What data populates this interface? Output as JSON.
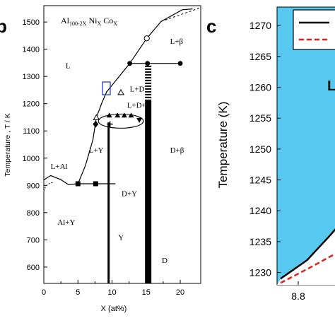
{
  "panels": {
    "b": {
      "letter": "b"
    },
    "c": {
      "letter": "c"
    }
  },
  "chart_data": [
    {
      "type": "line",
      "title": "Al100-2X NiX CoX",
      "title_parts": {
        "al": "Al",
        "al_sub": "100-2X",
        "ni": " Ni",
        "ni_sub": "X",
        "co": " Co",
        "co_sub": "X"
      },
      "xlabel": "X (at%)",
      "ylabel": "Temperature , T / K",
      "xlim": [
        0,
        23
      ],
      "ylim": [
        540,
        1560
      ],
      "xticks": [
        0,
        5,
        10,
        15,
        20
      ],
      "yticks": [
        600,
        700,
        800,
        900,
        1000,
        1100,
        1200,
        1300,
        1400,
        1500
      ],
      "grid": false,
      "phase_labels": [
        {
          "text": "L",
          "x": 3.2,
          "y": 1330
        },
        {
          "text": "L+β",
          "x": 18.5,
          "y": 1420
        },
        {
          "text": "L+D",
          "x": 12.6,
          "y": 1245
        },
        {
          "text": "L+D+Y",
          "x": 12.2,
          "y": 1185
        },
        {
          "text": "L+Al",
          "x": 1.0,
          "y": 960
        },
        {
          "text": "L+Y",
          "x": 6.6,
          "y": 1020
        },
        {
          "text": "D+β",
          "x": 18.5,
          "y": 1020
        },
        {
          "text": "D+Y",
          "x": 11.4,
          "y": 860
        },
        {
          "text": "Al+Y",
          "x": 2.0,
          "y": 755
        },
        {
          "text": "Y",
          "x": 10.9,
          "y": 700
        },
        {
          "text": "D",
          "x": 17.3,
          "y": 615
        }
      ],
      "series": [
        {
          "values": [
            [
              0,
              920
            ],
            [
              1,
              936
            ],
            [
              2.5,
              921
            ],
            [
              3.6,
              903
            ],
            [
              5,
              906
            ]
          ]
        },
        {
          "values": [
            [
              5,
              906
            ],
            [
              6.1,
              973
            ],
            [
              7.2,
              1068
            ],
            [
              7.7,
              1149
            ]
          ]
        },
        {
          "values": [
            [
              7.7,
              1149
            ],
            [
              8.5,
              1202
            ],
            [
              9.2,
              1243
            ],
            [
              12.6,
              1348
            ],
            [
              15.2,
              1348
            ],
            [
              20,
              1348
            ]
          ]
        },
        {
          "values": [
            [
              12.6,
              1348
            ],
            [
              15.1,
              1440
            ],
            [
              17.2,
              1502
            ],
            [
              20.3,
              1545
            ],
            [
              21.8,
              1548
            ]
          ]
        },
        {
          "values": [
            [
              5,
              906
            ],
            [
              10.5,
              906
            ]
          ]
        }
      ],
      "markers": {
        "filled_circles": [
          [
            12.6,
            1348
          ],
          [
            15.2,
            1348
          ],
          [
            20,
            1348
          ]
        ],
        "open_circles": [
          [
            15.1,
            1440
          ]
        ],
        "open_triangles": [
          [
            7.7,
            1149
          ],
          [
            11.3,
            1241
          ]
        ],
        "filled_squares": [
          [
            5,
            906
          ],
          [
            7.6,
            906
          ]
        ],
        "filled_diamonds": [
          [
            7.6,
            1125
          ]
        ],
        "filled_up_triangles": [
          [
            9.6,
            1157
          ],
          [
            10.8,
            1157
          ],
          [
            11.8,
            1157
          ],
          [
            12.8,
            1157
          ]
        ],
        "filled_down_triangles": [
          [
            14.0,
            1140
          ]
        ],
        "plus_marks": [
          [
            9.7,
            1125
          ]
        ]
      },
      "phase_lines": [
        {
          "x": 9.5,
          "ymin": 540,
          "ymax": 1131
        },
        {
          "x": 15.3,
          "ymin": 540,
          "ymax": 1210
        }
      ]
    },
    {
      "type": "area",
      "ylabel": "Temperature (K)",
      "xticks_labels": [
        "8.8"
      ],
      "yticks": [
        1230,
        1235,
        1240,
        1245,
        1250,
        1255,
        1260,
        1265,
        1270
      ],
      "ylim": [
        1228,
        1273
      ],
      "region_label": "L",
      "fill_color": "#57c9f1",
      "series": [
        {
          "color": "#000000",
          "style": "solid",
          "values": [
            [
              8.7,
              1229.0
            ],
            [
              8.85,
              1232.0
            ],
            [
              8.98,
              1236.0
            ],
            [
              9.04,
              1238.0
            ]
          ]
        },
        {
          "color": "#e02020",
          "style": "dashed",
          "values": [
            [
              8.7,
              1228.3
            ],
            [
              8.88,
              1231.0
            ],
            [
              9.04,
              1233.5
            ]
          ]
        }
      ]
    }
  ]
}
